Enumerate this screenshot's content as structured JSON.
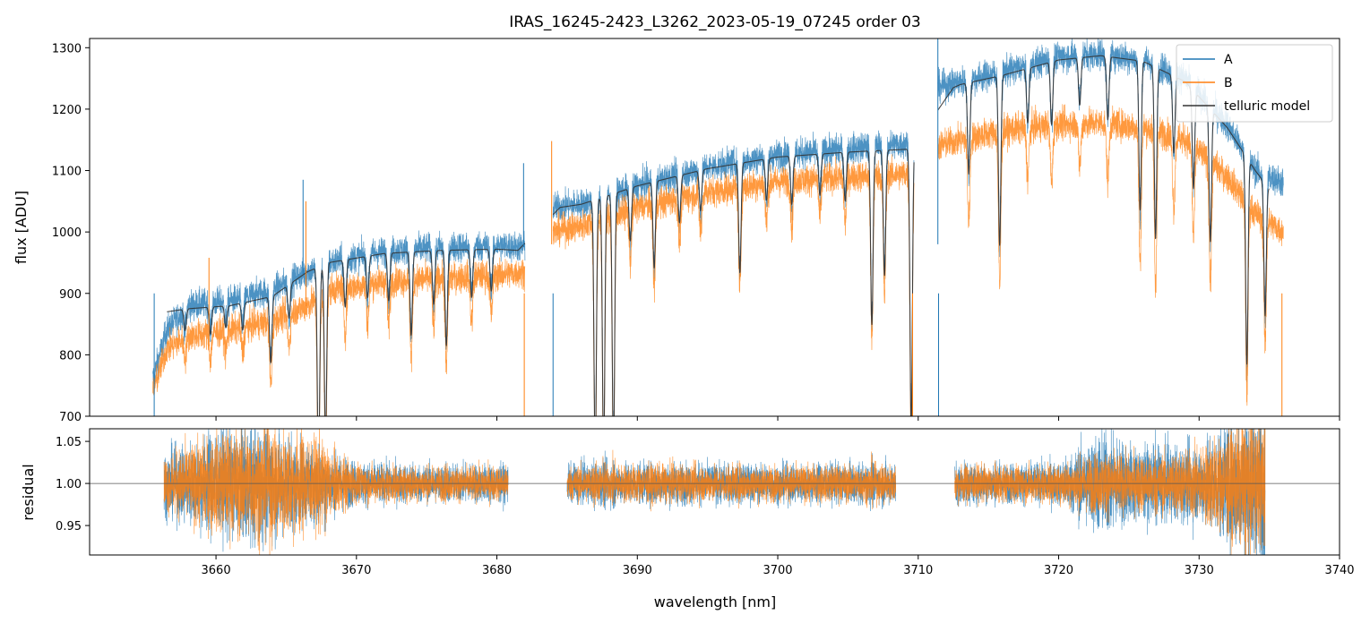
{
  "chart_data": [
    {
      "panel": "top",
      "type": "line",
      "title": "IRAS_16245-2423_L3262_2023-05-19_07245  order 03",
      "xlabel": "",
      "ylabel": "flux [ADU]",
      "xlim": [
        3651,
        3740
      ],
      "ylim": [
        700,
        1315
      ],
      "yticks": [
        700,
        800,
        900,
        1000,
        1100,
        1200,
        1300
      ],
      "grid": false,
      "legend_position": "top-right",
      "segments": [
        [
          3655.5,
          3682.0
        ],
        [
          3684.0,
          3709.7
        ],
        [
          3711.4,
          3736.0
        ]
      ],
      "series": [
        {
          "name": "A",
          "color": "#1f77b4",
          "x": [
            3655.5,
            3656.5,
            3658,
            3661,
            3664,
            3666.5,
            3668,
            3672,
            3676,
            3680,
            3682,
            3684,
            3686,
            3690,
            3695,
            3700,
            3705,
            3709.7,
            3711.4,
            3713,
            3716,
            3720,
            3723,
            3726,
            3729,
            3732,
            3734,
            3736
          ],
          "y": [
            760,
            840,
            880,
            888,
            905,
            935,
            950,
            968,
            975,
            978,
            975,
            1040,
            1045,
            1075,
            1105,
            1125,
            1135,
            1145,
            1235,
            1245,
            1260,
            1285,
            1290,
            1280,
            1250,
            1175,
            1100,
            1080
          ]
        },
        {
          "name": "B",
          "color": "#ff7f0e",
          "x": [
            3655.5,
            3656.5,
            3658,
            3661,
            3664,
            3666.5,
            3668,
            3672,
            3676,
            3680,
            3682,
            3684,
            3686,
            3690,
            3695,
            3700,
            3705,
            3709.7,
            3711.4,
            3713,
            3716,
            3720,
            3723,
            3726,
            3729,
            3732,
            3734,
            3736
          ],
          "y": [
            740,
            810,
            830,
            840,
            855,
            880,
            905,
            920,
            925,
            930,
            935,
            1000,
            1010,
            1040,
            1065,
            1082,
            1090,
            1095,
            1140,
            1150,
            1165,
            1175,
            1178,
            1170,
            1150,
            1090,
            1030,
            1000
          ]
        },
        {
          "name": "telluric model",
          "color": "#333333",
          "x": [
            3656.5,
            3658,
            3661,
            3664,
            3666.5,
            3668,
            3672,
            3676,
            3680,
            3681.5,
            3684.5,
            3686,
            3690,
            3695,
            3700,
            3705,
            3709.5,
            3712.5,
            3713,
            3716,
            3720,
            3723,
            3726,
            3729,
            3732,
            3734,
            3735
          ],
          "y": [
            870,
            875,
            880,
            895,
            935,
            950,
            965,
            970,
            972,
            970,
            1040,
            1045,
            1075,
            1103,
            1122,
            1130,
            1135,
            1235,
            1240,
            1255,
            1280,
            1287,
            1278,
            1245,
            1170,
            1100,
            1070
          ]
        }
      ]
    },
    {
      "panel": "bottom",
      "type": "line",
      "title": "",
      "xlabel": "wavelength [nm]",
      "ylabel": "residual",
      "xlim": [
        3651,
        3740
      ],
      "ylim": [
        0.915,
        1.065
      ],
      "xticks": [
        3660,
        3670,
        3680,
        3690,
        3700,
        3710,
        3720,
        3730,
        3740
      ],
      "yticks": [
        0.95,
        1.0,
        1.05
      ],
      "ytick_labels": [
        "0.95",
        "1.00",
        "1.05"
      ],
      "reference_line": 1.0,
      "segments": [
        [
          3656.3,
          3680.8
        ],
        [
          3685.0,
          3708.4
        ],
        [
          3712.6,
          3734.7
        ]
      ],
      "series": [
        {
          "name": "A",
          "color": "#1f77b4",
          "x": [
            3656.3,
            3660,
            3663,
            3666,
            3670,
            3675,
            3680.8,
            3685,
            3690,
            3700,
            3708.4,
            3712.6,
            3716,
            3720,
            3723,
            3726,
            3730,
            3733,
            3734.7
          ],
          "noise": [
            0.018,
            0.03,
            0.035,
            0.025,
            0.012,
            0.011,
            0.011,
            0.011,
            0.012,
            0.011,
            0.012,
            0.012,
            0.011,
            0.012,
            0.03,
            0.02,
            0.022,
            0.04,
            0.045
          ]
        },
        {
          "name": "B",
          "color": "#ff7f0e",
          "x": [
            3656.3,
            3660,
            3663,
            3666,
            3670,
            3675,
            3680.8,
            3685,
            3690,
            3700,
            3708.4,
            3712.6,
            3716,
            3720,
            3723,
            3726,
            3730,
            3733,
            3734.7
          ],
          "noise": [
            0.016,
            0.028,
            0.033,
            0.03,
            0.011,
            0.01,
            0.01,
            0.01,
            0.011,
            0.01,
            0.011,
            0.011,
            0.01,
            0.011,
            0.018,
            0.015,
            0.02,
            0.035,
            0.04
          ]
        }
      ]
    }
  ],
  "telluric_lines": [
    {
      "x": 3657.8,
      "depth": 0.04
    },
    {
      "x": 3659.6,
      "depth": 0.05
    },
    {
      "x": 3660.7,
      "depth": 0.04
    },
    {
      "x": 3661.9,
      "depth": 0.05
    },
    {
      "x": 3663.9,
      "depth": 0.12
    },
    {
      "x": 3665.2,
      "depth": 0.06
    },
    {
      "x": 3667.3,
      "depth": 0.35
    },
    {
      "x": 3667.8,
      "depth": 0.3
    },
    {
      "x": 3669.2,
      "depth": 0.08
    },
    {
      "x": 3670.8,
      "depth": 0.07
    },
    {
      "x": 3672.3,
      "depth": 0.08
    },
    {
      "x": 3673.9,
      "depth": 0.14
    },
    {
      "x": 3675.5,
      "depth": 0.09
    },
    {
      "x": 3676.4,
      "depth": 0.16
    },
    {
      "x": 3678.2,
      "depth": 0.08
    },
    {
      "x": 3679.6,
      "depth": 0.07
    },
    {
      "x": 3687.0,
      "depth": 0.4
    },
    {
      "x": 3687.6,
      "depth": 0.4
    },
    {
      "x": 3688.3,
      "depth": 0.4
    },
    {
      "x": 3689.5,
      "depth": 0.08
    },
    {
      "x": 3691.2,
      "depth": 0.13
    },
    {
      "x": 3693.0,
      "depth": 0.07
    },
    {
      "x": 3694.5,
      "depth": 0.06
    },
    {
      "x": 3697.3,
      "depth": 0.16
    },
    {
      "x": 3699.2,
      "depth": 0.06
    },
    {
      "x": 3701.0,
      "depth": 0.07
    },
    {
      "x": 3703.0,
      "depth": 0.06
    },
    {
      "x": 3704.8,
      "depth": 0.07
    },
    {
      "x": 3706.7,
      "depth": 0.25
    },
    {
      "x": 3707.6,
      "depth": 0.18
    },
    {
      "x": 3709.5,
      "depth": 0.4
    },
    {
      "x": 3713.6,
      "depth": 0.12
    },
    {
      "x": 3715.8,
      "depth": 0.22
    },
    {
      "x": 3717.8,
      "depth": 0.07
    },
    {
      "x": 3719.5,
      "depth": 0.08
    },
    {
      "x": 3721.5,
      "depth": 0.06
    },
    {
      "x": 3723.5,
      "depth": 0.08
    },
    {
      "x": 3725.8,
      "depth": 0.19
    },
    {
      "x": 3726.9,
      "depth": 0.22
    },
    {
      "x": 3728.2,
      "depth": 0.1
    },
    {
      "x": 3729.6,
      "depth": 0.13
    },
    {
      "x": 3730.8,
      "depth": 0.18
    },
    {
      "x": 3733.4,
      "depth": 0.3
    },
    {
      "x": 3734.7,
      "depth": 0.2
    }
  ],
  "spikes": [
    {
      "x": 3681.9,
      "series": "A",
      "y": 1112
    },
    {
      "x": 3683.9,
      "series": "B",
      "y": 1148
    },
    {
      "x": 3711.4,
      "series": "A",
      "y": 1315
    },
    {
      "x": 3666.4,
      "series": "B",
      "y": 1050
    },
    {
      "x": 3666.2,
      "series": "A",
      "y": 1085
    },
    {
      "x": 3659.5,
      "series": "B",
      "y": 958
    }
  ],
  "legend": {
    "items": [
      {
        "label": "A",
        "color": "#1f77b4"
      },
      {
        "label": "B",
        "color": "#ff7f0e"
      },
      {
        "label": "telluric model",
        "color": "#333333"
      }
    ]
  }
}
